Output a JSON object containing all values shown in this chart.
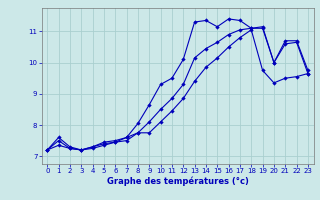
{
  "xlabel": "Graphe des températures (°c)",
  "bg_color": "#cce8e8",
  "grid_color": "#aacfcf",
  "line_color": "#0000bb",
  "xlim": [
    -0.5,
    23.5
  ],
  "ylim": [
    6.75,
    11.75
  ],
  "xticks": [
    0,
    1,
    2,
    3,
    4,
    5,
    6,
    7,
    8,
    9,
    10,
    11,
    12,
    13,
    14,
    15,
    16,
    17,
    18,
    19,
    20,
    21,
    22,
    23
  ],
  "yticks": [
    7,
    8,
    9,
    10,
    11
  ],
  "curve1_x": [
    0,
    1,
    2,
    3,
    4,
    5,
    6,
    7,
    8,
    9,
    10,
    11,
    12,
    13,
    14,
    15,
    16,
    17,
    18,
    19,
    20,
    21,
    22,
    23
  ],
  "curve1_y": [
    7.2,
    7.6,
    7.3,
    7.2,
    7.3,
    7.4,
    7.45,
    7.6,
    8.05,
    8.65,
    9.3,
    9.5,
    10.1,
    11.3,
    11.35,
    11.15,
    11.4,
    11.35,
    11.1,
    11.1,
    10.0,
    10.7,
    10.7,
    9.75
  ],
  "curve2_x": [
    0,
    1,
    2,
    3,
    4,
    5,
    6,
    7,
    8,
    9,
    10,
    11,
    12,
    13,
    14,
    15,
    16,
    17,
    18,
    19,
    20,
    21,
    22,
    23
  ],
  "curve2_y": [
    7.2,
    7.35,
    7.25,
    7.2,
    7.25,
    7.35,
    7.45,
    7.5,
    7.75,
    8.1,
    8.5,
    8.85,
    9.3,
    10.15,
    10.45,
    10.65,
    10.9,
    11.05,
    11.1,
    11.15,
    10.0,
    10.6,
    10.65,
    9.65
  ],
  "curve3_x": [
    0,
    1,
    2,
    3,
    4,
    5,
    6,
    7,
    8,
    9,
    10,
    11,
    12,
    13,
    14,
    15,
    16,
    17,
    18,
    19,
    20,
    21,
    22,
    23
  ],
  "curve3_y": [
    7.2,
    7.5,
    7.25,
    7.2,
    7.3,
    7.45,
    7.5,
    7.6,
    7.75,
    7.75,
    8.1,
    8.45,
    8.85,
    9.4,
    9.85,
    10.15,
    10.5,
    10.8,
    11.05,
    9.75,
    9.35,
    9.5,
    9.55,
    9.65
  ]
}
